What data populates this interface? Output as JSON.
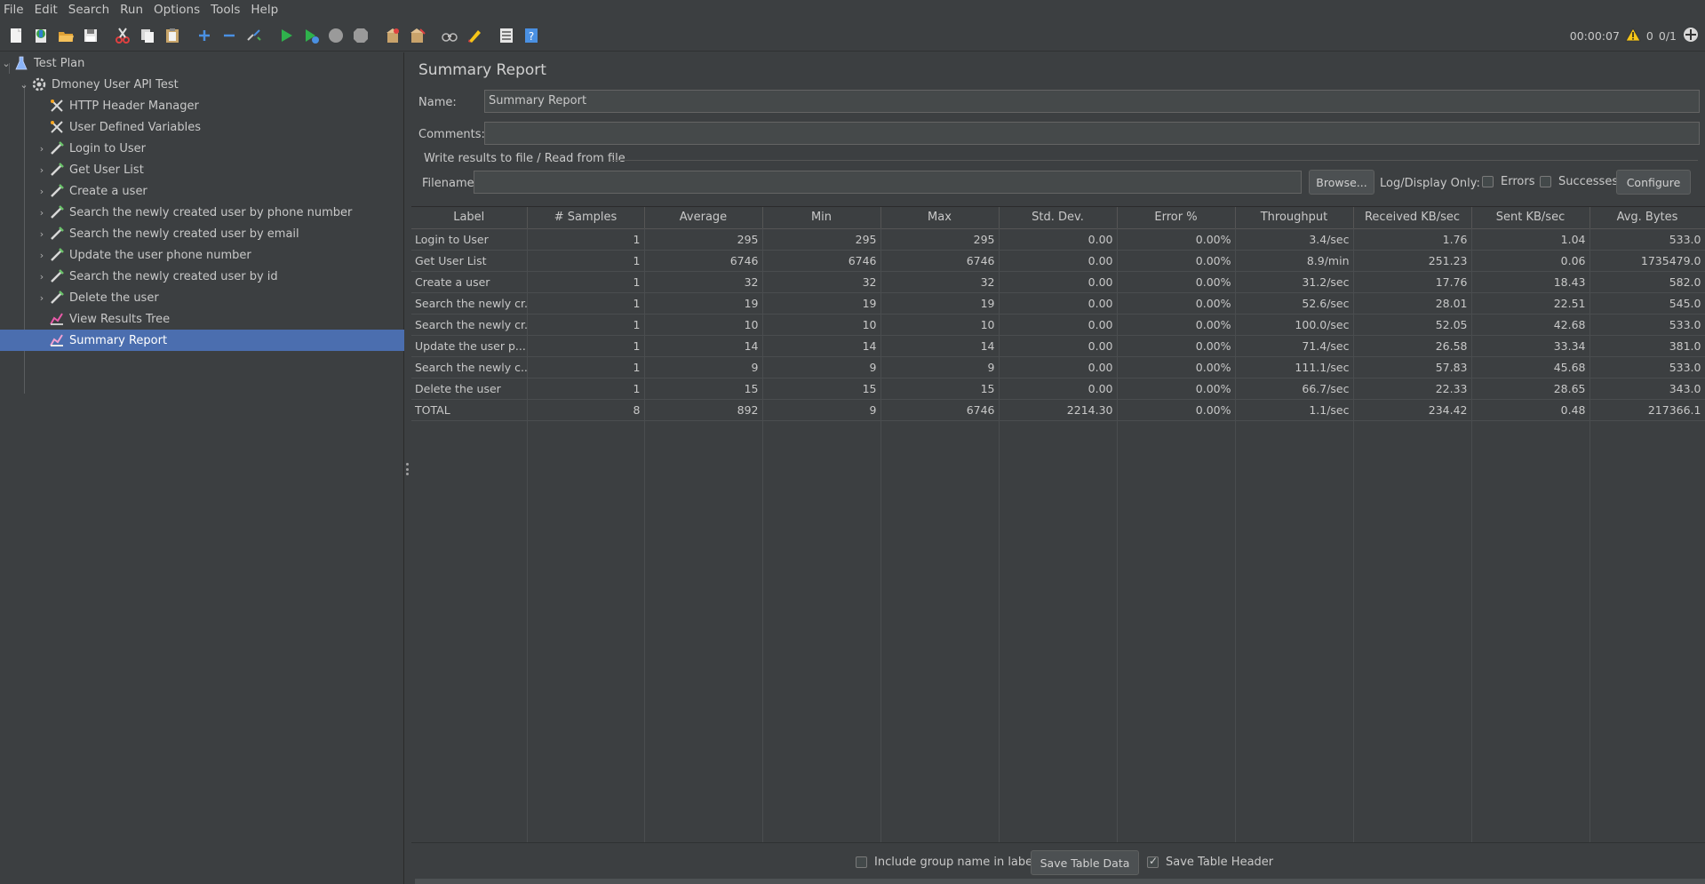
{
  "menu": [
    "File",
    "Edit",
    "Search",
    "Run",
    "Options",
    "Tools",
    "Help"
  ],
  "toolbar": {
    "icons": [
      "new-icon",
      "templates-icon",
      "open-icon",
      "save-icon",
      "cut-icon",
      "copy-icon",
      "paste-icon",
      "expand-icon",
      "collapse-icon",
      "toggle-icon",
      "start-icon",
      "start-no-pauses-icon",
      "stop-icon",
      "shutdown-icon",
      "clear-icon",
      "clear-all-icon",
      "search-icon",
      "reset-search-icon",
      "function-helper-icon",
      "help-icon"
    ],
    "timer": "00:00:07",
    "warnings": "0",
    "threads": "0/1"
  },
  "tree": {
    "items": [
      {
        "label": "Test Plan",
        "icon": "test-plan-icon"
      },
      {
        "label": "Dmoney User API Test",
        "icon": "thread-group-icon"
      },
      {
        "label": "HTTP Header Manager",
        "icon": "config-element-icon"
      },
      {
        "label": "User Defined Variables",
        "icon": "config-element-icon"
      },
      {
        "label": "Login to User",
        "icon": "http-sampler-icon"
      },
      {
        "label": "Get User List",
        "icon": "http-sampler-icon"
      },
      {
        "label": "Create a user",
        "icon": "http-sampler-icon"
      },
      {
        "label": "Search the newly created user by phone number",
        "icon": "http-sampler-icon"
      },
      {
        "label": "Search the newly created user by email",
        "icon": "http-sampler-icon"
      },
      {
        "label": "Update the user phone number",
        "icon": "http-sampler-icon"
      },
      {
        "label": " Search the newly created user by id",
        "icon": "http-sampler-icon"
      },
      {
        "label": "Delete the user",
        "icon": "http-sampler-icon"
      },
      {
        "label": "View Results Tree",
        "icon": "listener-icon"
      },
      {
        "label": "Summary Report",
        "icon": "listener-icon"
      }
    ]
  },
  "report": {
    "title": "Summary Report",
    "name_label": "Name:",
    "name_value": "Summary Report",
    "comments_label": "Comments:",
    "comments_value": "",
    "file_group_title": "Write results to file / Read from file",
    "filename_label": "Filename",
    "filename_value": "",
    "browse_label": "Browse...",
    "log_display_label": "Log/Display Only:",
    "errors_label": "Errors",
    "successes_label": "Successes",
    "configure_label": "Configure"
  },
  "table": {
    "headers": [
      "Label",
      "# Samples",
      "Average",
      "Min",
      "Max",
      "Std. Dev.",
      "Error %",
      "Throughput",
      "Received KB/sec",
      "Sent KB/sec",
      "Avg. Bytes"
    ],
    "rows": [
      [
        "Login to User",
        "1",
        "295",
        "295",
        "295",
        "0.00",
        "0.00%",
        "3.4/sec",
        "1.76",
        "1.04",
        "533.0"
      ],
      [
        "Get User List",
        "1",
        "6746",
        "6746",
        "6746",
        "0.00",
        "0.00%",
        "8.9/min",
        "251.23",
        "0.06",
        "1735479.0"
      ],
      [
        "Create a user",
        "1",
        "32",
        "32",
        "32",
        "0.00",
        "0.00%",
        "31.2/sec",
        "17.76",
        "18.43",
        "582.0"
      ],
      [
        "Search the newly cr...",
        "1",
        "19",
        "19",
        "19",
        "0.00",
        "0.00%",
        "52.6/sec",
        "28.01",
        "22.51",
        "545.0"
      ],
      [
        "Search the newly cr...",
        "1",
        "10",
        "10",
        "10",
        "0.00",
        "0.00%",
        "100.0/sec",
        "52.05",
        "42.68",
        "533.0"
      ],
      [
        "Update the user p...",
        "1",
        "14",
        "14",
        "14",
        "0.00",
        "0.00%",
        "71.4/sec",
        "26.58",
        "33.34",
        "381.0"
      ],
      [
        " Search the newly c...",
        "1",
        "9",
        "9",
        "9",
        "0.00",
        "0.00%",
        "111.1/sec",
        "57.83",
        "45.68",
        "533.0"
      ],
      [
        "Delete the user",
        "1",
        "15",
        "15",
        "15",
        "0.00",
        "0.00%",
        "66.7/sec",
        "22.33",
        "28.65",
        "343.0"
      ],
      [
        "TOTAL",
        "8",
        "892",
        "9",
        "6746",
        "2214.30",
        "0.00%",
        "1.1/sec",
        "234.42",
        "0.48",
        "217366.1"
      ]
    ]
  },
  "bottom": {
    "include_group_label": "Include group name in label?",
    "save_table_data_label": "Save Table Data",
    "save_table_header_label": "Save Table Header"
  }
}
